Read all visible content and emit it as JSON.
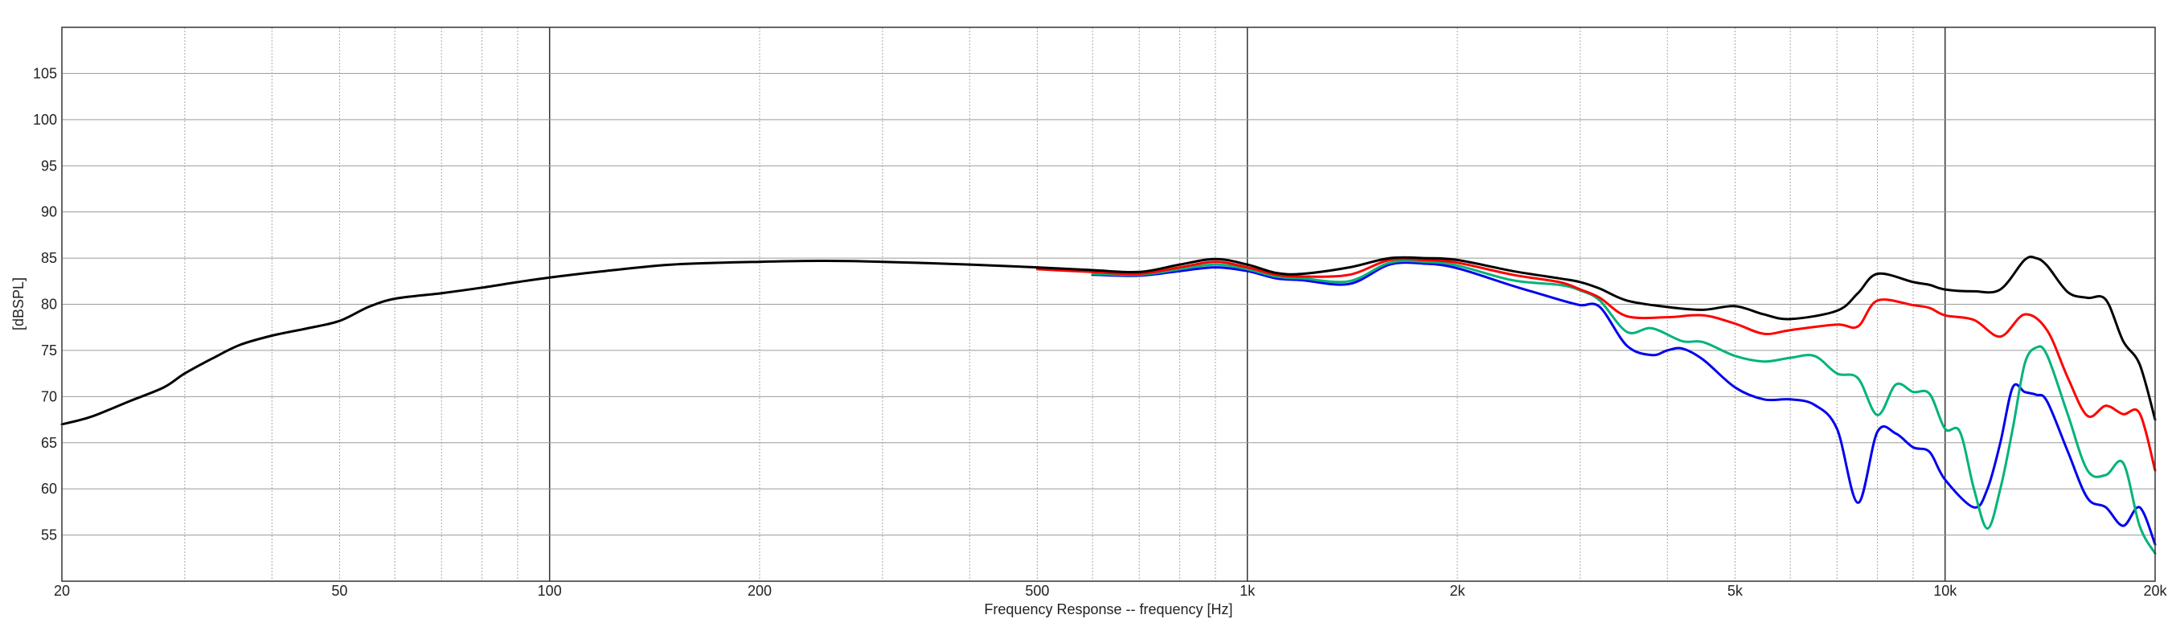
{
  "chart_data": {
    "type": "line",
    "title": "",
    "xlabel": "Frequency Response -- frequency [Hz]",
    "ylabel": "[dBSPL]",
    "x_scale": "log",
    "xlim": [
      20,
      20000
    ],
    "ylim": [
      50,
      110
    ],
    "grid": true,
    "x_ticks": [
      {
        "value": 20,
        "label": "20"
      },
      {
        "value": 50,
        "label": "50"
      },
      {
        "value": 100,
        "label": "100"
      },
      {
        "value": 200,
        "label": "200"
      },
      {
        "value": 500,
        "label": "500"
      },
      {
        "value": 1000,
        "label": "1k"
      },
      {
        "value": 2000,
        "label": "2k"
      },
      {
        "value": 5000,
        "label": "5k"
      },
      {
        "value": 10000,
        "label": "10k"
      },
      {
        "value": 20000,
        "label": "20k"
      }
    ],
    "y_ticks": [
      55,
      60,
      65,
      70,
      75,
      80,
      85,
      90,
      95,
      100,
      105
    ],
    "series": [
      {
        "color": "#000000",
        "x": [
          20,
          22,
          25,
          28,
          30,
          33,
          36,
          40,
          45,
          50,
          55,
          60,
          70,
          80,
          90,
          100,
          120,
          150,
          200,
          250,
          300,
          400,
          500,
          600,
          700,
          800,
          900,
          1000,
          1100,
          1200,
          1400,
          1600,
          1800,
          2000,
          2400,
          2800,
          3000,
          3200,
          3500,
          4000,
          4500,
          5000,
          5500,
          6000,
          7000,
          7500,
          8000,
          9000,
          9500,
          10000,
          11000,
          12000,
          13000,
          13500,
          14000,
          15000,
          16000,
          17000,
          18000,
          19000,
          20000
        ],
        "y": [
          67.0,
          67.8,
          69.5,
          71.0,
          72.5,
          74.2,
          75.6,
          76.6,
          77.4,
          78.2,
          79.7,
          80.6,
          81.2,
          81.8,
          82.4,
          82.9,
          83.6,
          84.3,
          84.6,
          84.7,
          84.6,
          84.3,
          84.0,
          83.7,
          83.5,
          84.3,
          84.9,
          84.3,
          83.4,
          83.3,
          84.0,
          85.0,
          85.0,
          84.8,
          83.6,
          82.8,
          82.4,
          81.7,
          80.4,
          79.7,
          79.4,
          79.8,
          78.9,
          78.4,
          79.3,
          81.2,
          83.3,
          82.4,
          82.1,
          81.6,
          81.4,
          81.6,
          84.8,
          85.0,
          84.2,
          81.3,
          80.7,
          80.5,
          76.0,
          73.5,
          67.5
        ]
      },
      {
        "color": "#ff0000",
        "x": [
          500,
          600,
          700,
          800,
          900,
          1000,
          1100,
          1200,
          1400,
          1600,
          1800,
          2000,
          2400,
          2800,
          3000,
          3200,
          3500,
          4000,
          4500,
          5000,
          5500,
          6000,
          7000,
          7500,
          8000,
          9000,
          9500,
          10000,
          11000,
          12000,
          13000,
          14000,
          15000,
          16000,
          17000,
          18000,
          19000,
          20000
        ],
        "y": [
          83.8,
          83.5,
          83.3,
          84.0,
          84.6,
          84.0,
          83.2,
          83.0,
          83.2,
          84.8,
          84.8,
          84.5,
          83.2,
          82.4,
          81.6,
          80.7,
          78.7,
          78.6,
          78.8,
          77.9,
          76.8,
          77.2,
          77.8,
          77.6,
          80.4,
          79.9,
          79.6,
          78.8,
          78.3,
          76.5,
          78.9,
          77.2,
          72.0,
          67.9,
          69.0,
          68.1,
          68.2,
          62.0
        ]
      },
      {
        "color": "#00b37a",
        "x": [
          600,
          700,
          800,
          900,
          1000,
          1100,
          1200,
          1400,
          1600,
          1800,
          2000,
          2400,
          2800,
          3000,
          3200,
          3500,
          3800,
          4200,
          4500,
          5000,
          5500,
          6000,
          6500,
          7000,
          7500,
          8000,
          8500,
          9000,
          9500,
          10000,
          10500,
          11000,
          11500,
          12000,
          12500,
          13000,
          13500,
          14000,
          15000,
          16000,
          17000,
          18000,
          19000,
          20000
        ],
        "y": [
          83.3,
          83.2,
          83.8,
          84.3,
          83.8,
          83.0,
          82.8,
          82.5,
          84.5,
          84.6,
          84.2,
          82.6,
          82.1,
          81.5,
          80.4,
          77.0,
          77.4,
          76.0,
          75.9,
          74.4,
          73.8,
          74.2,
          74.4,
          72.5,
          72.0,
          68.0,
          71.3,
          70.5,
          70.3,
          66.5,
          66.2,
          60.0,
          55.7,
          60.0,
          66.5,
          73.5,
          75.3,
          74.5,
          68.0,
          62.0,
          61.5,
          62.8,
          56.0,
          53.0
        ]
      },
      {
        "color": "#0000ee",
        "x": [
          600,
          700,
          800,
          900,
          1000,
          1100,
          1200,
          1400,
          1600,
          1800,
          2000,
          2400,
          2800,
          3000,
          3200,
          3500,
          3800,
          4000,
          4200,
          4500,
          5000,
          5500,
          6000,
          6500,
          7000,
          7500,
          8000,
          8500,
          9000,
          9500,
          10000,
          11000,
          11500,
          12000,
          12500,
          13000,
          13500,
          14000,
          15000,
          16000,
          17000,
          18000,
          19000,
          20000
        ],
        "y": [
          83.2,
          83.1,
          83.6,
          84.0,
          83.6,
          82.8,
          82.6,
          82.2,
          84.3,
          84.4,
          83.9,
          82.0,
          80.5,
          79.9,
          79.7,
          75.5,
          74.5,
          75.0,
          75.2,
          74.0,
          71.0,
          69.7,
          69.7,
          69.1,
          66.5,
          58.5,
          66.2,
          66.0,
          64.5,
          64.0,
          61.0,
          58.0,
          60.0,
          65.0,
          71.0,
          70.5,
          70.2,
          69.5,
          64.0,
          59.0,
          58.0,
          56.0,
          58.0,
          54.0
        ]
      }
    ]
  }
}
